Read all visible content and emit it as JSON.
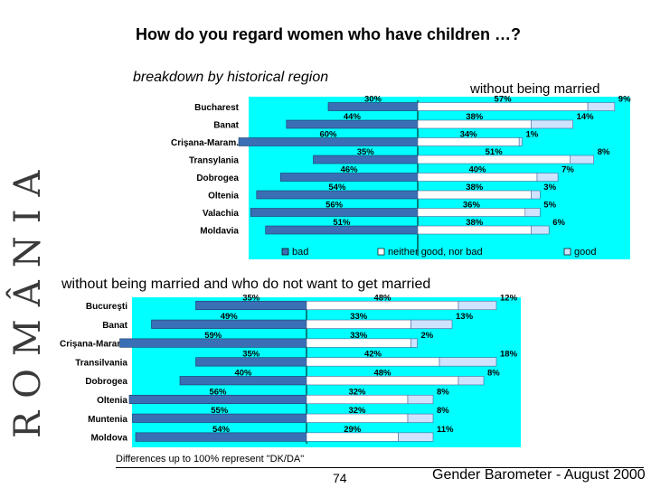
{
  "title": "How do you regard women who have children …?",
  "subtitle": "breakdown by historical region",
  "side_logo": "ROMÂNIA",
  "footnote": "Differences up to 100% represent \"DK/DA\"",
  "page_number": "74",
  "source": "Gender Barometer - August 2000",
  "colors": {
    "panel": "#00ffff",
    "bar": "#3a6fb5",
    "bar_light": "#cfe3ff"
  },
  "chart_data": [
    {
      "type": "bar",
      "title": "without being married",
      "categories": [
        "Bucharest",
        "Banat",
        "Crişana-Maram.",
        "Transylania",
        "Dobrogea",
        "Oltenia",
        "Valachia",
        "Moldavia"
      ],
      "series": [
        {
          "name": "bad",
          "values": [
            30,
            44,
            60,
            35,
            46,
            54,
            56,
            51
          ]
        },
        {
          "name": "neither good, nor bad",
          "values": [
            57,
            38,
            34,
            51,
            40,
            38,
            36,
            38
          ]
        },
        {
          "name": "good",
          "values": [
            9,
            14,
            1,
            8,
            7,
            3,
            5,
            6
          ]
        }
      ],
      "legend": "bottom"
    },
    {
      "type": "bar",
      "title": "without being married and who do not want to get married",
      "categories": [
        "Bucureşti",
        "Banat",
        "Crişana-Maram.",
        "Transilvania",
        "Dobrogea",
        "Oltenia",
        "Muntenia",
        "Moldova"
      ],
      "series": [
        {
          "name": "bad",
          "values": [
            35,
            49,
            59,
            35,
            40,
            56,
            55,
            54
          ]
        },
        {
          "name": "neither good, nor bad",
          "values": [
            48,
            33,
            33,
            42,
            48,
            32,
            32,
            29
          ]
        },
        {
          "name": "good",
          "values": [
            12,
            13,
            2,
            18,
            8,
            8,
            8,
            11
          ]
        }
      ]
    }
  ]
}
